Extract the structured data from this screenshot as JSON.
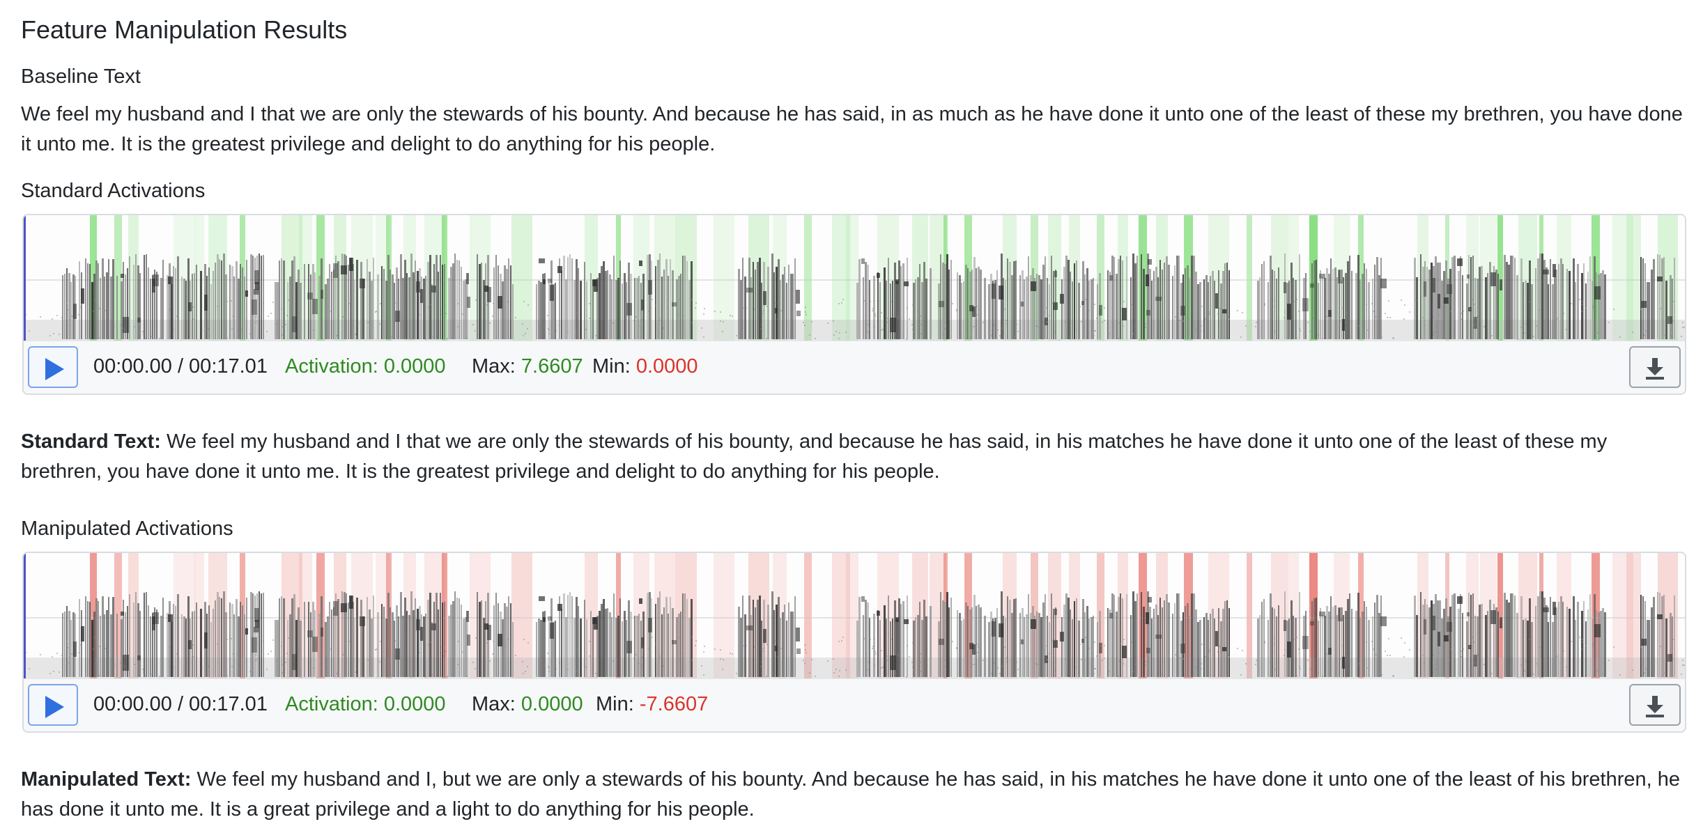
{
  "title": "Feature Manipulation Results",
  "baseline": {
    "heading": "Baseline Text",
    "text": "We feel my husband and I that we are only the stewards of his bounty. And because he has said, in as much as he have done it unto one of the least of these my brethren, you have done it unto me. It is the greatest privilege and delight to do anything for his people."
  },
  "standard": {
    "heading": "Standard Activations",
    "time": "00:00.00 / 00:17.01",
    "activation_label": "Activation:",
    "activation_value": "0.0000",
    "max_label": "Max:",
    "max_value": "7.6607",
    "min_label": "Min:",
    "min_value": "0.0000",
    "overlay_color": "#3ccb2f",
    "text_label": "Standard Text:",
    "text": "We feel my husband and I that we are only the stewards of his bounty, and because he has said, in his matches he have done it unto one of the least of these my brethren, you have done it unto me. It is the greatest privilege and delight to do anything for his people."
  },
  "manipulated": {
    "heading": "Manipulated Activations",
    "time": "00:00.00 / 00:17.01",
    "activation_label": "Activation:",
    "activation_value": "0.0000",
    "max_label": "Max:",
    "max_value": "0.0000",
    "min_label": "Min:",
    "min_value": "-7.6607",
    "overlay_color": "#e0392e",
    "text_label": "Manipulated Text:",
    "text": "We feel my husband and I, but we are only a stewards of his bounty. And because he has said, in his matches he have done it unto one of the least of his brethren, he has done it unto me. It is a great privilege and a light to do anything for his people."
  },
  "icons": {
    "play": "play-icon",
    "download": "download-icon"
  },
  "colors": {
    "play_icon": "#2f6fe0",
    "positive": "#2e8a22",
    "negative": "#d9342b",
    "cursor": "#4a55c6"
  }
}
